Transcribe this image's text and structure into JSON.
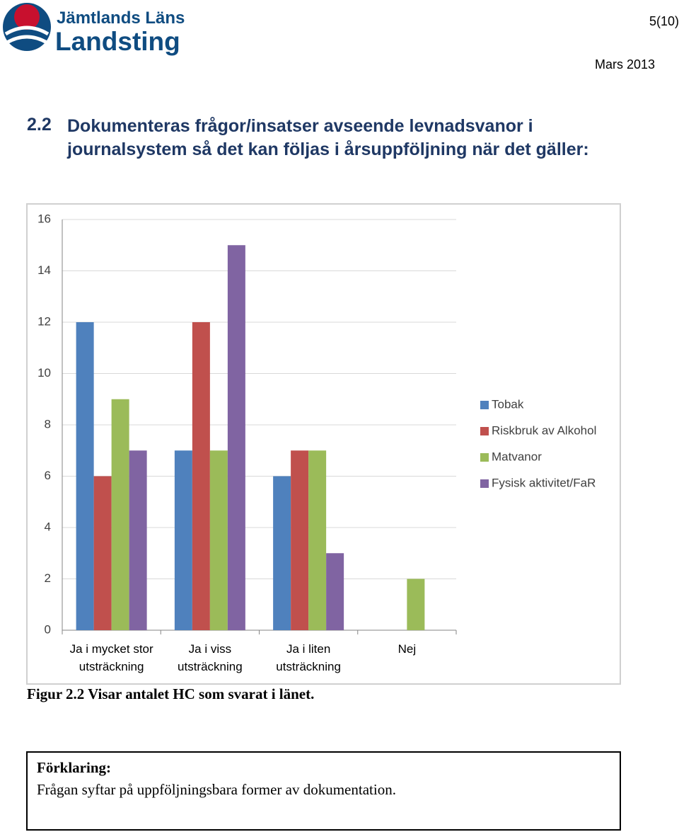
{
  "header": {
    "logo_line1": "Jämtlands Läns",
    "logo_line2": "Landsting",
    "page": "5(10)",
    "date": "Mars 2013"
  },
  "heading": {
    "number": "2.2",
    "text": "Dokumenteras frågor/insatser avseende levnadsvanor i journalsystem så det kan följas i årsuppföljning när det gäller:"
  },
  "chart_data": {
    "type": "bar",
    "categories": [
      "Ja i mycket stor utsträckning",
      "Ja i viss utsträckning",
      "Ja i liten utsträckning",
      "Nej"
    ],
    "series": [
      {
        "name": "Tobak",
        "color": "#4f81bd",
        "values": [
          12,
          7,
          6,
          0
        ]
      },
      {
        "name": "Riskbruk av Alkohol",
        "color": "#c0504d",
        "values": [
          6,
          12,
          7,
          0
        ]
      },
      {
        "name": "Matvanor",
        "color": "#9bbb59",
        "values": [
          9,
          7,
          7,
          2
        ]
      },
      {
        "name": "Fysisk aktivitet/FaR",
        "color": "#8064a2",
        "values": [
          7,
          15,
          3,
          0
        ]
      }
    ],
    "ylim": [
      0,
      16
    ],
    "yticks": [
      0,
      2,
      4,
      6,
      8,
      10,
      12,
      14,
      16
    ],
    "grid": true,
    "legend": "right"
  },
  "caption": "Figur 2.2 Visar antalet HC som svarat i länet.",
  "box": {
    "title": "Förklaring:",
    "text": "Frågan syftar på uppföljningsbara former av dokumentation."
  }
}
